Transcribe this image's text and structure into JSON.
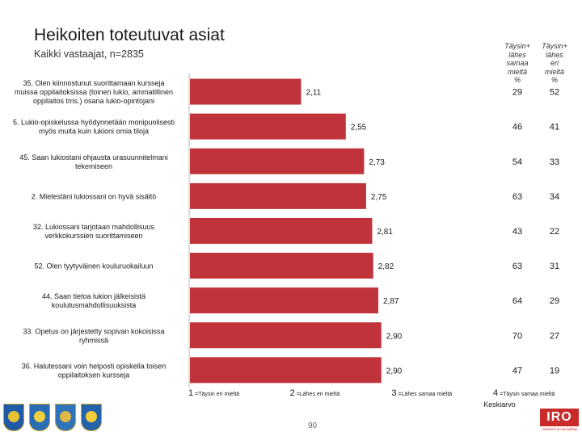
{
  "slide": {
    "title": "Heikoiten toteutuvat asiat",
    "subtitle": "Kaikki vastaajat, n=2835",
    "page_number": "90",
    "logo_text": "IRO",
    "logo_subtext": "research & consulting"
  },
  "columns": {
    "agree": "Täysin+\nlähes\nsamaa\nmieltä\n%",
    "disagree": "Täysin+\nlähes\neri\nmieltä\n%"
  },
  "scale": {
    "labels": [
      {
        "value": 1,
        "text": "=Täysin eri mieltä"
      },
      {
        "value": 2,
        "text": "=Lähes eri mieltä"
      },
      {
        "value": 3,
        "text": "=Lähes samaa mieltä"
      },
      {
        "value": 4,
        "text": "=Täysin samaa mieltä"
      }
    ],
    "axis_title": "Keskiarvo"
  },
  "colors": {
    "bar": "#c0333a",
    "text": "#1a1a1a"
  },
  "chart_data": {
    "type": "bar",
    "orientation": "horizontal",
    "title": "Heikoiten toteutuvat asiat",
    "xlabel": "Keskiarvo",
    "xlim": [
      1,
      4
    ],
    "series": [
      {
        "name": "Keskiarvo",
        "values": [
          2.11,
          2.55,
          2.73,
          2.75,
          2.81,
          2.82,
          2.87,
          2.9,
          2.9
        ]
      }
    ],
    "rows": [
      {
        "label": "35. Olen kiinnostunut suorittamaan kursseja\nmuissa oppilaitoksissa (toinen lukio, ammatillinen\noppilaitos tms.) osana lukio-opintojani",
        "value": 2.11,
        "value_label": "2,11",
        "agree": "29",
        "disagree": "52"
      },
      {
        "label": "5. Lukio-opiskelussa hyödynnetään monipuolisesti\nmyös muita kuin lukioni omia tiloja",
        "value": 2.55,
        "value_label": "2,55",
        "agree": "46",
        "disagree": "41"
      },
      {
        "label": "45. Saan lukiostani ohjausta urasuunnitelmani\ntekemiseen",
        "value": 2.73,
        "value_label": "2,73",
        "agree": "54",
        "disagree": "33"
      },
      {
        "label": "2. Mielestäni lukiossani on hyvä sisältö",
        "value": 2.75,
        "value_label": "2,75",
        "agree": "63",
        "disagree": "34"
      },
      {
        "label": "32. Lukiossani tarjotaan mahdollisuus\nverkkokurssien suorittamiseen",
        "value": 2.81,
        "value_label": "2,81",
        "agree": "43",
        "disagree": "22"
      },
      {
        "label": "52. Olen tyytyväinen kouluruokailuun",
        "value": 2.82,
        "value_label": "2,82",
        "agree": "63",
        "disagree": "31"
      },
      {
        "label": "44. Saan tietoa lukion jälkeisistä\nkoulutusmahdollisuuksista",
        "value": 2.87,
        "value_label": "2,87",
        "agree": "64",
        "disagree": "29"
      },
      {
        "label": "33. Opetus on järjestetty sopivan kokoisissa\nryhmissä",
        "value": 2.9,
        "value_label": "2,90",
        "agree": "70",
        "disagree": "27"
      },
      {
        "label": "36. Halutessani voin helposti opiskella toisen\noppilaitoksen kursseja",
        "value": 2.9,
        "value_label": "2,90",
        "agree": "47",
        "disagree": "19"
      }
    ]
  }
}
